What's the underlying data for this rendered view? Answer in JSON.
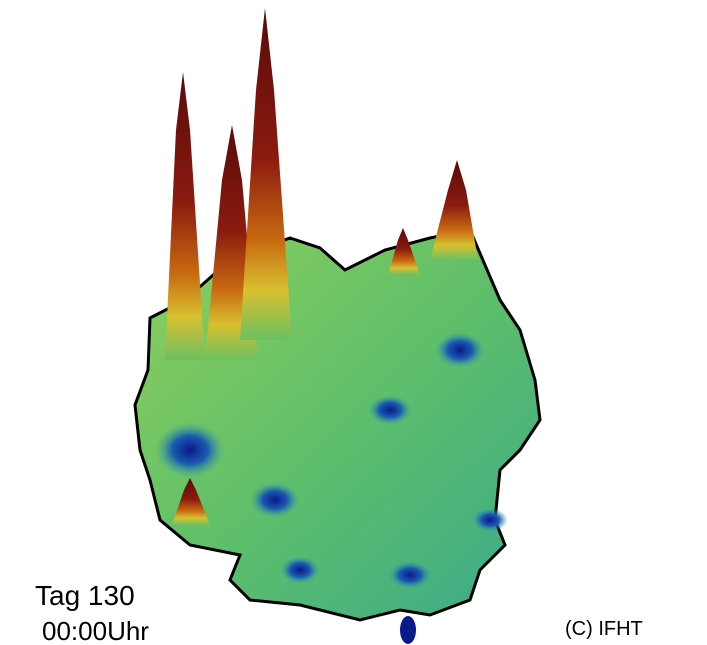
{
  "overlay": {
    "day": "Tag 130",
    "time": "00:00Uhr",
    "copyright": "(C) IFHT"
  }
}
